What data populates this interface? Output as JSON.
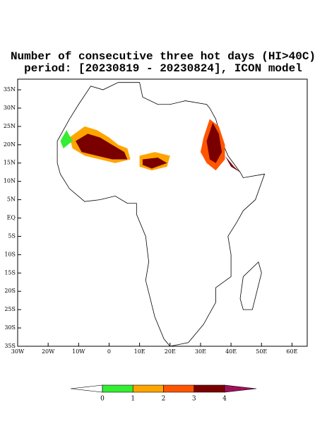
{
  "map": {
    "type": "map",
    "title": "Number of consecutive three hot days (HI>40C)",
    "subtitle": "period: [20230819 - 20230824], ICON model",
    "xlim": [
      -30,
      65
    ],
    "ylim": [
      -35,
      37.9
    ],
    "xticks": [
      {
        "value": -30,
        "label": "30W"
      },
      {
        "value": -20,
        "label": "20W"
      },
      {
        "value": -10,
        "label": "10W"
      },
      0,
      {
        "value": 10,
        "label": "10E"
      },
      {
        "value": 20,
        "label": "20E"
      },
      {
        "value": 30,
        "label": "30E"
      },
      {
        "value": 40,
        "label": "40E"
      },
      {
        "value": 50,
        "label": "50E"
      },
      {
        "value": 60,
        "label": "60E"
      }
    ],
    "yticks": [
      {
        "value": 35,
        "label": "35N"
      },
      {
        "value": 30,
        "label": "30N"
      },
      {
        "value": 25,
        "label": "25N"
      },
      {
        "value": 20,
        "label": "20N"
      },
      {
        "value": 15,
        "label": "15N"
      },
      {
        "value": 10,
        "label": "10N"
      },
      {
        "value": 5,
        "label": "5N"
      },
      {
        "value": 0,
        "label": "EQ"
      },
      {
        "value": -5,
        "label": "5S"
      },
      {
        "value": -10,
        "label": "10S"
      },
      {
        "value": -15,
        "label": "15S"
      },
      {
        "value": -20,
        "label": "20S"
      },
      {
        "value": -25,
        "label": "25S"
      },
      {
        "value": -30,
        "label": "30S"
      },
      {
        "value": -35,
        "label": "35S"
      }
    ],
    "colorbar": {
      "levels": [
        0,
        1,
        2,
        3,
        4
      ],
      "colors": [
        "#ffffff",
        "#33ee33",
        "#ffa500",
        "#ff5500",
        "#7a0000",
        "#a0105a"
      ]
    }
  }
}
